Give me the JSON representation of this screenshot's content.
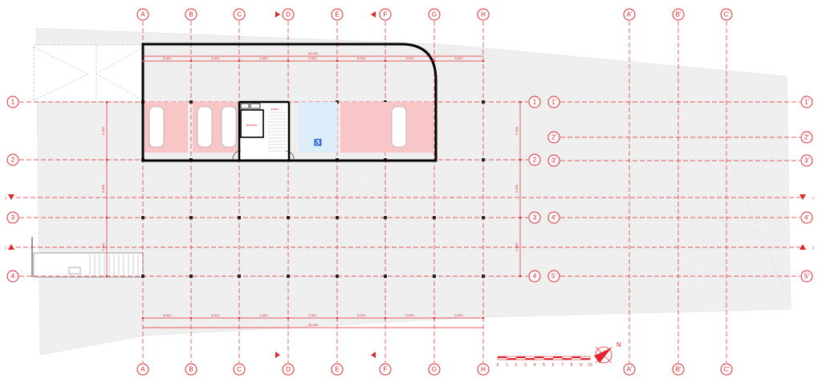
{
  "colors": {
    "grid": "#e0262b",
    "site": "#efefef",
    "parking": "#f9c6c8",
    "accessible_bay": "#dcecf9",
    "wall": "#000000"
  },
  "columns_main": [
    "A",
    "B",
    "C",
    "D",
    "E",
    "F",
    "G",
    "H"
  ],
  "columns_secondary": [
    "A'",
    "B'",
    "C'"
  ],
  "rows_main": [
    "1",
    "2",
    "3",
    "4"
  ],
  "rows_secondary": [
    "1'",
    "2'",
    "3'",
    "4'",
    "5'"
  ],
  "section_markers": {
    "horizontal": [
      "4",
      "3"
    ],
    "vertical": [
      "",
      ""
    ]
  },
  "dimensions": {
    "bay": "5.000",
    "total": "35.000",
    "vertical_bay": "5.000"
  },
  "rooms": {
    "stair": "scala",
    "lift": "ascens."
  },
  "scale_bar": {
    "ticks": [
      "0",
      "1",
      "2",
      "3",
      "4",
      "5",
      "6",
      "7",
      "8",
      "9",
      "10"
    ]
  },
  "north_arrow": {
    "icon": "north-arrow-icon"
  },
  "accessible_icon": "wheelchair-icon"
}
